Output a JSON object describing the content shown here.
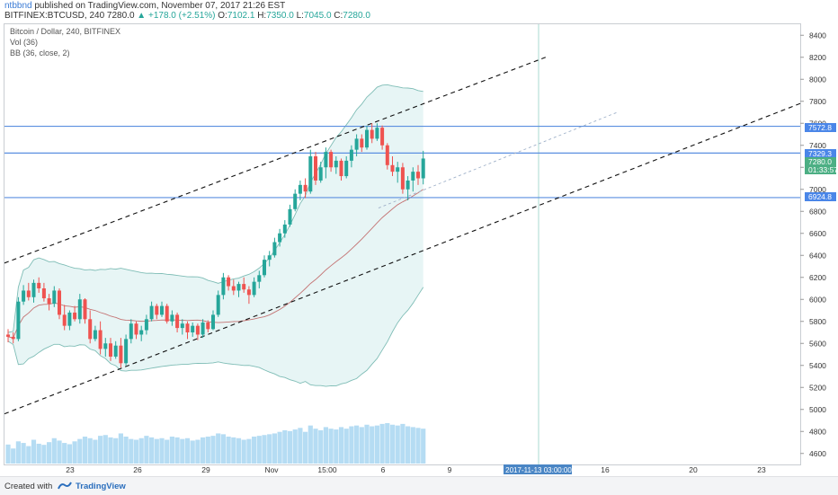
{
  "header": {
    "user": "ntbbnd",
    "published": "published on TradingView.com, November 07, 2017 21:26 EST",
    "symbol": "BITFINEX:BTCUSD, 240",
    "last": "7280.0",
    "change": "+178.0 (+2.51%)",
    "open_label": "O:",
    "open": "7102.1",
    "high_label": "H:",
    "high": "7350.0",
    "low_label": "L:",
    "low": "7045.0",
    "close_label": "C:",
    "close": "7280.0"
  },
  "legend": {
    "title": "Bitcoin / Dollar, 240, BITFINEX",
    "vol": "Vol (36)",
    "bb": "BB (36, close, 2)"
  },
  "footer": {
    "created": "Created with",
    "brand": "TradingView"
  },
  "colors": {
    "up": "#26a69a",
    "down": "#ef5350",
    "band_fill": "#e1f2f2",
    "band_line": "#7fbdb6",
    "hline": "#5b8fe0",
    "basis": "#c47474",
    "volume": "#9cd0ef",
    "price_tag_blue": "#4a86e8",
    "price_tag_green": "#4caf84"
  },
  "chart_data": {
    "type": "candlestick",
    "title": "Bitcoin / Dollar, 240, BITFINEX",
    "ylim": [
      4500,
      8500
    ],
    "y_ticks": [
      4600,
      4800,
      5000,
      5200,
      5400,
      5600,
      5800,
      6000,
      6200,
      6400,
      6600,
      6800,
      7000,
      7200,
      7400,
      7600,
      7800,
      8000,
      8200,
      8400
    ],
    "x_ticks": [
      "23",
      "26",
      "29",
      "Nov",
      "15:00",
      "6",
      "9",
      "13",
      "16",
      "20",
      "23"
    ],
    "cursor_date": "2017-11-13 03:00:00",
    "horizontal_levels": [
      7572.8,
      7329.3,
      6924.8
    ],
    "price_labels": [
      {
        "label": "7572.8",
        "value": 7572.8,
        "style": "blue"
      },
      {
        "label": "7329.3",
        "value": 7329.3,
        "style": "blue"
      },
      {
        "label": "7280.0",
        "value": 7280.0,
        "style": "green"
      },
      {
        "label": "01:33:57",
        "value": 7160,
        "style": "green"
      },
      {
        "label": "6924.8",
        "value": 6924.8,
        "style": "blue"
      }
    ],
    "trend_lines": [
      {
        "style": "dashed",
        "points": [
          [
            0,
            6330
          ],
          [
            0.68,
            8200
          ]
        ]
      },
      {
        "style": "dashed",
        "points": [
          [
            0,
            4960
          ],
          [
            1.0,
            7780
          ]
        ]
      },
      {
        "style": "light-dashed",
        "points": [
          [
            0.47,
            6830
          ],
          [
            0.77,
            7700
          ]
        ]
      }
    ],
    "candles": [
      [
        5680,
        5730,
        5610,
        5660
      ],
      [
        5660,
        5700,
        5600,
        5640
      ],
      [
        5640,
        6020,
        5620,
        5980
      ],
      [
        5980,
        6130,
        5950,
        6080
      ],
      [
        6080,
        6150,
        5990,
        6020
      ],
      [
        6020,
        6180,
        5970,
        6150
      ],
      [
        6150,
        6200,
        6060,
        6100
      ],
      [
        6100,
        6150,
        5980,
        6010
      ],
      [
        6010,
        6050,
        5900,
        5960
      ],
      [
        5960,
        6120,
        5930,
        6080
      ],
      [
        6080,
        6100,
        5820,
        5860
      ],
      [
        5860,
        5950,
        5720,
        5760
      ],
      [
        5760,
        5900,
        5720,
        5880
      ],
      [
        5880,
        5940,
        5800,
        5820
      ],
      [
        5820,
        6050,
        5780,
        6000
      ],
      [
        6000,
        6010,
        5780,
        5820
      ],
      [
        5820,
        5900,
        5600,
        5640
      ],
      [
        5640,
        5760,
        5620,
        5720
      ],
      [
        5720,
        5800,
        5500,
        5550
      ],
      [
        5550,
        5650,
        5480,
        5600
      ],
      [
        5600,
        5650,
        5440,
        5480
      ],
      [
        5480,
        5620,
        5460,
        5580
      ],
      [
        5580,
        5650,
        5380,
        5420
      ],
      [
        5420,
        5680,
        5400,
        5640
      ],
      [
        5640,
        5820,
        5600,
        5780
      ],
      [
        5780,
        5800,
        5640,
        5680
      ],
      [
        5680,
        5760,
        5620,
        5720
      ],
      [
        5720,
        5860,
        5680,
        5820
      ],
      [
        5820,
        5980,
        5800,
        5940
      ],
      [
        5940,
        5960,
        5820,
        5860
      ],
      [
        5860,
        5980,
        5840,
        5940
      ],
      [
        5940,
        5960,
        5780,
        5800
      ],
      [
        5800,
        5900,
        5760,
        5860
      ],
      [
        5860,
        5880,
        5700,
        5740
      ],
      [
        5740,
        5820,
        5680,
        5780
      ],
      [
        5780,
        5800,
        5640,
        5700
      ],
      [
        5700,
        5790,
        5660,
        5760
      ],
      [
        5760,
        5780,
        5630,
        5680
      ],
      [
        5680,
        5820,
        5650,
        5790
      ],
      [
        5790,
        5810,
        5700,
        5730
      ],
      [
        5730,
        5900,
        5720,
        5860
      ],
      [
        5860,
        6080,
        5840,
        6040
      ],
      [
        6040,
        6240,
        6000,
        6200
      ],
      [
        6200,
        6220,
        6080,
        6120
      ],
      [
        6120,
        6180,
        6040,
        6080
      ],
      [
        6080,
        6160,
        6020,
        6140
      ],
      [
        6140,
        6200,
        6060,
        6090
      ],
      [
        6090,
        6120,
        5960,
        6040
      ],
      [
        6040,
        6200,
        6020,
        6160
      ],
      [
        6160,
        6260,
        6100,
        6220
      ],
      [
        6220,
        6400,
        6200,
        6360
      ],
      [
        6360,
        6440,
        6300,
        6400
      ],
      [
        6400,
        6560,
        6380,
        6520
      ],
      [
        6520,
        6640,
        6480,
        6600
      ],
      [
        6600,
        6720,
        6560,
        6680
      ],
      [
        6680,
        6860,
        6660,
        6820
      ],
      [
        6820,
        7000,
        6800,
        6960
      ],
      [
        6960,
        7080,
        6900,
        7040
      ],
      [
        7040,
        7100,
        6920,
        6980
      ],
      [
        6980,
        7360,
        6960,
        7300
      ],
      [
        7300,
        7340,
        7040,
        7080
      ],
      [
        7080,
        7250,
        7060,
        7200
      ],
      [
        7200,
        7380,
        7100,
        7340
      ],
      [
        7340,
        7360,
        7160,
        7200
      ],
      [
        7200,
        7300,
        7140,
        7260
      ],
      [
        7260,
        7280,
        7080,
        7120
      ],
      [
        7120,
        7300,
        7100,
        7260
      ],
      [
        7260,
        7400,
        7200,
        7360
      ],
      [
        7360,
        7500,
        7300,
        7460
      ],
      [
        7460,
        7500,
        7340,
        7380
      ],
      [
        7380,
        7580,
        7360,
        7540
      ],
      [
        7540,
        7600,
        7420,
        7460
      ],
      [
        7460,
        7600,
        7440,
        7560
      ],
      [
        7560,
        7580,
        7360,
        7400
      ],
      [
        7400,
        7420,
        7180,
        7220
      ],
      [
        7220,
        7300,
        7120,
        7160
      ],
      [
        7160,
        7250,
        7060,
        7200
      ],
      [
        7200,
        7240,
        6960,
        7000
      ],
      [
        7000,
        7120,
        6900,
        7080
      ],
      [
        7080,
        7200,
        6980,
        7160
      ],
      [
        7160,
        7220,
        7040,
        7100
      ],
      [
        7100,
        7350,
        7045,
        7280
      ]
    ],
    "volume": [
      120,
      95,
      140,
      130,
      110,
      150,
      125,
      118,
      135,
      160,
      145,
      130,
      122,
      140,
      155,
      170,
      160,
      150,
      175,
      180,
      165,
      160,
      190,
      170,
      155,
      150,
      160,
      175,
      165,
      155,
      160,
      150,
      170,
      165,
      155,
      160,
      145,
      150,
      165,
      170,
      175,
      190,
      185,
      170,
      165,
      160,
      150,
      155,
      170,
      175,
      180,
      185,
      190,
      200,
      210,
      205,
      215,
      225,
      200,
      240,
      220,
      210,
      230,
      220,
      215,
      230,
      220,
      235,
      240,
      230,
      245,
      235,
      240,
      250,
      255,
      245,
      240,
      250,
      235,
      230,
      225,
      220
    ]
  }
}
